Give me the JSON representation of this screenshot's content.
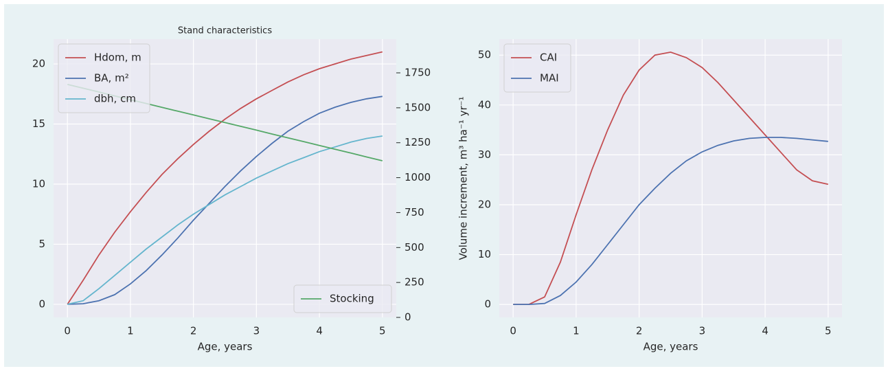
{
  "chart_data": [
    {
      "type": "line",
      "title": "Stand characteristics",
      "xlabel": "Age, years",
      "x": [
        0,
        0.25,
        0.5,
        0.75,
        1,
        1.25,
        1.5,
        1.75,
        2,
        2.25,
        2.5,
        2.75,
        3,
        3.25,
        3.5,
        3.75,
        4,
        4.25,
        4.5,
        4.75,
        5
      ],
      "xlim": [
        -0.22,
        5.22
      ],
      "xticks": [
        0,
        1,
        2,
        3,
        4,
        5
      ],
      "ylim": [
        -1.09,
        22.06
      ],
      "yticks": [
        0,
        5,
        10,
        15,
        20
      ],
      "y2lim": [
        0,
        1991
      ],
      "y2ticks": [
        0,
        250,
        500,
        750,
        1000,
        1250,
        1500,
        1750
      ],
      "grid": true,
      "legend": "upper left",
      "y2_legend": "lower right",
      "series": [
        {
          "name": "Hdom, m",
          "color": "#c44e52",
          "values": [
            0,
            2.0,
            4.1,
            6.0,
            7.7,
            9.3,
            10.8,
            12.1,
            13.3,
            14.4,
            15.4,
            16.3,
            17.1,
            17.8,
            18.5,
            19.1,
            19.6,
            20.0,
            20.4,
            20.7,
            21.0
          ]
        },
        {
          "name": "BA, m²",
          "color": "#4c72b0",
          "values": [
            0,
            0.05,
            0.3,
            0.8,
            1.7,
            2.8,
            4.1,
            5.5,
            7.0,
            8.4,
            9.8,
            11.1,
            12.3,
            13.4,
            14.4,
            15.2,
            15.9,
            16.4,
            16.8,
            17.1,
            17.3
          ]
        },
        {
          "name": "dbh, cm",
          "color": "#64b5cd",
          "values": [
            0,
            0.3,
            1.3,
            2.4,
            3.5,
            4.6,
            5.6,
            6.6,
            7.5,
            8.3,
            9.1,
            9.8,
            10.5,
            11.1,
            11.7,
            12.2,
            12.7,
            13.1,
            13.5,
            13.8,
            14.0
          ]
        },
        {
          "name": "Stocking",
          "color": "#55a868",
          "axis": "y2",
          "values": [
            1667,
            1640,
            1613,
            1585,
            1558,
            1531,
            1503,
            1476,
            1449,
            1421,
            1394,
            1367,
            1340,
            1312,
            1285,
            1258,
            1230,
            1203,
            1176,
            1148,
            1121
          ]
        }
      ]
    },
    {
      "type": "line",
      "xlabel": "Age, years",
      "ylabel": "Volume increment, m³ ha⁻¹ yr⁻¹",
      "x": [
        0,
        0.25,
        0.5,
        0.75,
        1,
        1.25,
        1.5,
        1.75,
        2,
        2.25,
        2.5,
        2.75,
        3,
        3.25,
        3.5,
        3.75,
        4,
        4.25,
        4.5,
        4.75,
        5
      ],
      "xlim": [
        -0.22,
        5.22
      ],
      "xticks": [
        0,
        1,
        2,
        3,
        4,
        5
      ],
      "ylim": [
        -2.6,
        53.2
      ],
      "yticks": [
        0,
        10,
        20,
        30,
        40,
        50
      ],
      "grid": true,
      "legend": "upper left",
      "series": [
        {
          "name": "CAI",
          "color": "#c44e52",
          "values": [
            0,
            0,
            1.5,
            8.5,
            18,
            27,
            35,
            42,
            47,
            50,
            50.6,
            49.5,
            47.5,
            44.5,
            41,
            37.5,
            34,
            30.5,
            27,
            24.8,
            24.1
          ]
        },
        {
          "name": "MAI",
          "color": "#4c72b0",
          "values": [
            0,
            0,
            0.2,
            1.8,
            4.5,
            8,
            12,
            16,
            20,
            23.3,
            26.3,
            28.8,
            30.6,
            31.9,
            32.8,
            33.3,
            33.5,
            33.5,
            33.3,
            33.0,
            32.7
          ]
        }
      ]
    }
  ]
}
